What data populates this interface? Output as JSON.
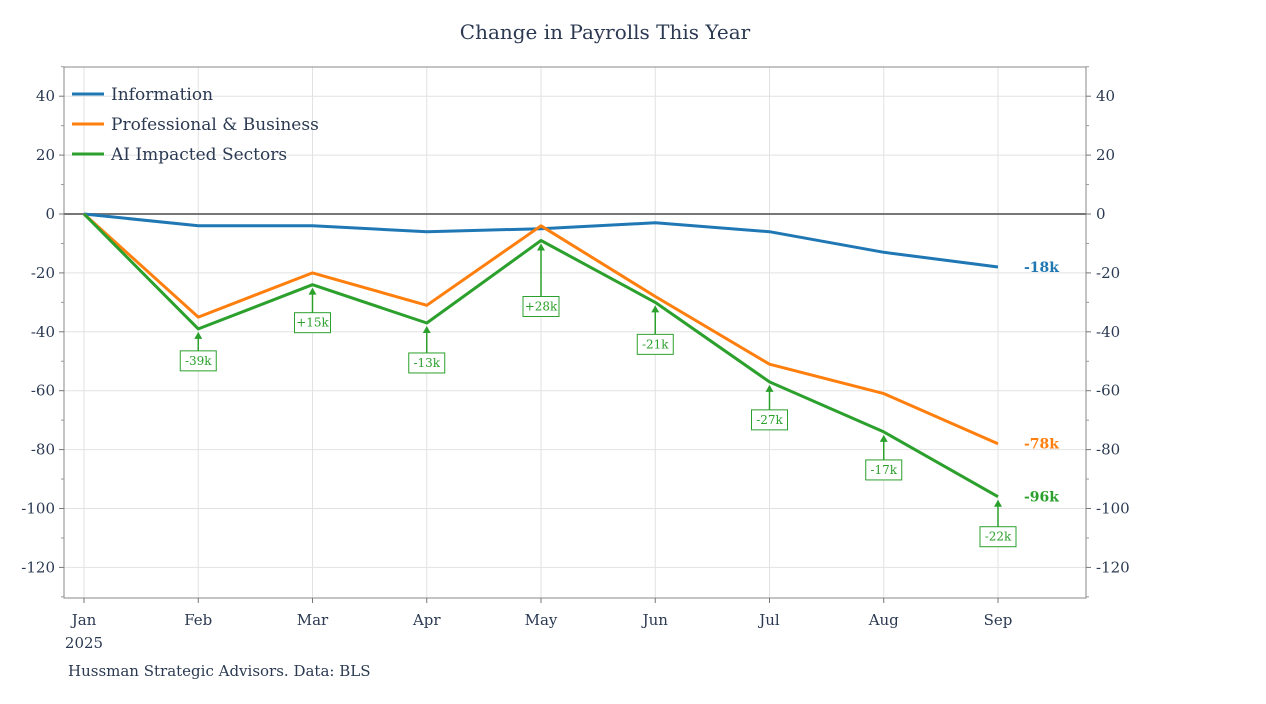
{
  "chart_data": {
    "type": "line",
    "title": "Change in Payrolls This Year",
    "source": "Hussman Strategic Advisors. Data: BLS",
    "x": [
      "Jan",
      "Feb",
      "Mar",
      "Apr",
      "May",
      "Jun",
      "Jul",
      "Aug",
      "Sep"
    ],
    "x_sublabel": "2025",
    "ylim": [
      -130,
      50
    ],
    "yticks": [
      40,
      20,
      0,
      -20,
      -40,
      -60,
      -80,
      -100,
      -120
    ],
    "grid": true,
    "legend_position": "top-left",
    "series": [
      {
        "name": "Information",
        "color": "#1f77b4",
        "values": [
          0,
          -4,
          -4,
          -6,
          -5,
          -3,
          -6,
          -13,
          -18
        ],
        "end_label": "-18k"
      },
      {
        "name": "Professional & Business",
        "color": "#ff7f0e",
        "values": [
          0,
          -35,
          -20,
          -31,
          -4,
          -28,
          -51,
          -61,
          -78
        ],
        "end_label": "-78k"
      },
      {
        "name": "AI Impacted Sectors",
        "color": "#2ca02c",
        "values": [
          0,
          -39,
          -24,
          -37,
          -9,
          -30,
          -57,
          -74,
          -96
        ],
        "end_label": "-96k"
      }
    ],
    "annotations": [
      {
        "x": "Feb",
        "y": -39,
        "text": "-39k"
      },
      {
        "x": "Mar",
        "y": -24,
        "text": "+15k"
      },
      {
        "x": "Apr",
        "y": -37,
        "text": "-13k"
      },
      {
        "x": "May",
        "y": -9,
        "text": "+28k"
      },
      {
        "x": "Jun",
        "y": -30,
        "text": "-21k"
      },
      {
        "x": "Jul",
        "y": -57,
        "text": "-27k"
      },
      {
        "x": "Aug",
        "y": -74,
        "text": "-17k"
      },
      {
        "x": "Sep",
        "y": -96,
        "text": "-22k"
      }
    ]
  }
}
